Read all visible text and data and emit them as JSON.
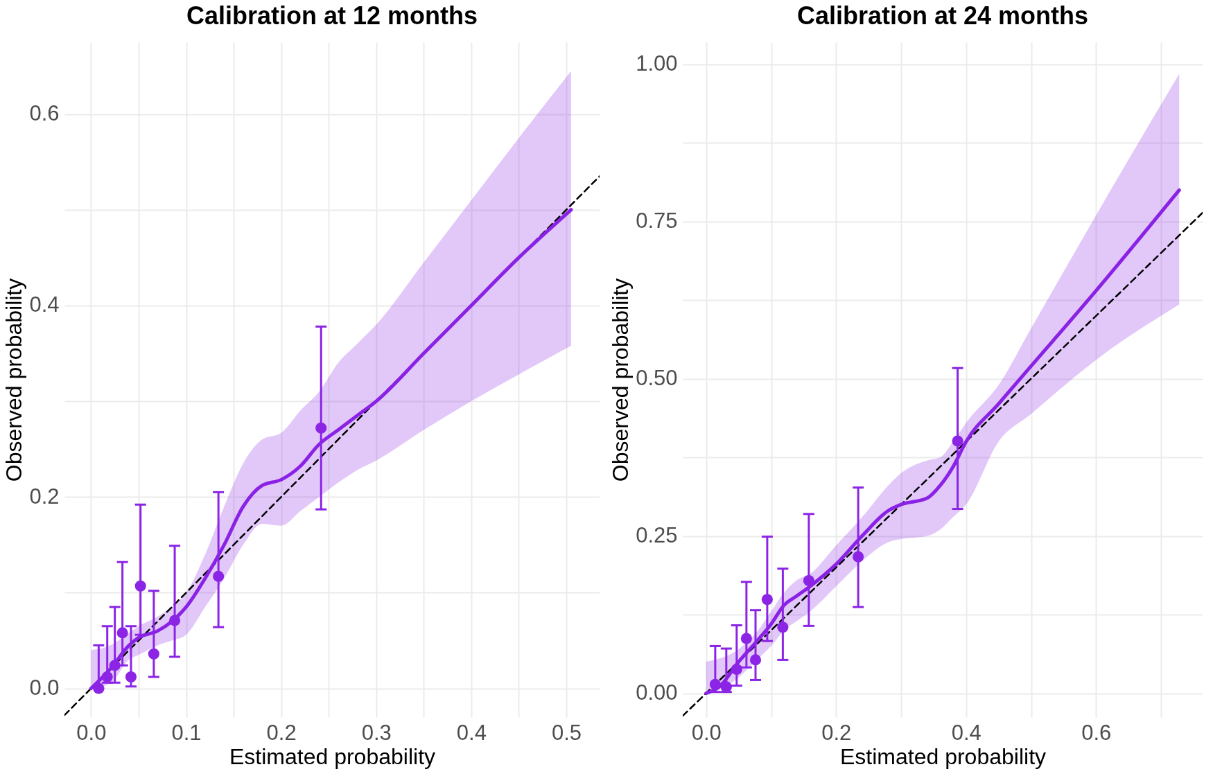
{
  "chart_data": [
    {
      "type": "scatter",
      "title": "Calibration at 12 months",
      "xlabel": "Estimated probability",
      "ylabel": "Observed probability",
      "xlim": [
        -0.028,
        0.535
      ],
      "ylim": [
        -0.03,
        0.675
      ],
      "xticks": [
        {
          "value": 0,
          "label": "0.0"
        },
        {
          "value": 0.05,
          "label": null
        },
        0.1,
        {
          "value": 0.15,
          "label": null
        },
        0.2,
        {
          "value": 0.25,
          "label": null
        },
        0.3,
        {
          "value": 0.35,
          "label": null
        },
        0.4,
        {
          "value": 0.45,
          "label": null
        },
        0.5
      ],
      "yticks": [
        {
          "value": 0,
          "label": "0.0"
        },
        {
          "value": 0.1,
          "label": null
        },
        0.2,
        {
          "value": 0.3,
          "label": null
        },
        0.4,
        {
          "value": 0.5,
          "label": null
        },
        0.6
      ],
      "grid": true,
      "series": [
        {
          "type": "line",
          "color": "#000000",
          "line_style": "dashed",
          "x": [
            -0.028,
            0.535
          ],
          "values": [
            -0.028,
            0.535
          ]
        },
        {
          "type": "line",
          "color": "#8a22e6",
          "x": [
            0,
            0.02,
            0.04,
            0.05,
            0.07,
            0.085,
            0.1,
            0.12,
            0.14,
            0.16,
            0.18,
            0.2,
            0.22,
            0.24,
            0.26,
            0.28,
            0.3,
            0.35,
            0.4,
            0.45,
            0.505
          ],
          "values": [
            0,
            0.02,
            0.045,
            0.053,
            0.06,
            0.07,
            0.085,
            0.115,
            0.15,
            0.19,
            0.212,
            0.218,
            0.232,
            0.255,
            0.27,
            0.285,
            0.3,
            0.35,
            0.4,
            0.45,
            0.5
          ],
          "lower": [
            0,
            0.005,
            0.03,
            0.035,
            0.045,
            0.05,
            0.056,
            0.085,
            0.115,
            0.15,
            0.172,
            0.17,
            0.185,
            0.2,
            0.215,
            0.228,
            0.238,
            0.27,
            0.3,
            0.328,
            0.358
          ],
          "upper": [
            0.04,
            0.045,
            0.058,
            0.065,
            0.075,
            0.085,
            0.1,
            0.14,
            0.19,
            0.235,
            0.26,
            0.267,
            0.29,
            0.31,
            0.34,
            0.36,
            0.38,
            0.445,
            0.51,
            0.575,
            0.645
          ]
        },
        {
          "type": "scatter",
          "color": "#8b24e4",
          "marker": "circle",
          "x": [
            0.008,
            0.017,
            0.025,
            0.033,
            0.042,
            0.052,
            0.066,
            0.088,
            0.134,
            0.242
          ],
          "values": [
            0,
            0.012,
            0.024,
            0.058,
            0.012,
            0.107,
            0.036,
            0.071,
            0.117,
            0.272
          ],
          "errors": [
            [
              0,
              0.045
            ],
            [
              0.006,
              0.065
            ],
            [
              0.006,
              0.085
            ],
            [
              0.024,
              0.132
            ],
            [
              0.002,
              0.065
            ],
            [
              0.056,
              0.192
            ],
            [
              0.012,
              0.102
            ],
            [
              0.033,
              0.149
            ],
            [
              0.064,
              0.205
            ],
            [
              0.187,
              0.378
            ]
          ]
        }
      ]
    },
    {
      "type": "scatter",
      "title": "Calibration at 24 months",
      "xlabel": "Estimated probability",
      "ylabel": "Observed probability",
      "xlim": [
        -0.036,
        0.764
      ],
      "ylim": [
        -0.038,
        1.035
      ],
      "xticks": [
        {
          "value": 0,
          "label": "0.0"
        },
        {
          "value": 0.1,
          "label": null
        },
        0.2,
        {
          "value": 0.3,
          "label": null
        },
        0.4,
        {
          "value": 0.5,
          "label": null
        },
        0.6,
        {
          "value": 0.7,
          "label": null
        }
      ],
      "yticks": [
        {
          "value": 0,
          "label": "0.00"
        },
        {
          "value": 0.125,
          "label": null
        },
        0.25,
        {
          "value": 0.375,
          "label": null
        },
        {
          "value": 0.5,
          "label": "0.50"
        },
        {
          "value": 0.625,
          "label": null
        },
        0.75,
        {
          "value": 0.875,
          "label": null
        },
        {
          "value": 1,
          "label": "1.00"
        }
      ],
      "grid": true,
      "series": [
        {
          "type": "line",
          "color": "#000000",
          "line_style": "dashed",
          "x": [
            -0.036,
            0.764
          ],
          "values": [
            -0.036,
            0.764
          ]
        },
        {
          "type": "line",
          "color": "#8a22e6",
          "x": [
            0,
            0.02,
            0.05,
            0.08,
            0.1,
            0.12,
            0.14,
            0.16,
            0.2,
            0.24,
            0.28,
            0.3,
            0.34,
            0.36,
            0.38,
            0.4,
            0.45,
            0.5,
            0.6,
            0.728
          ],
          "values": [
            0,
            0.01,
            0.05,
            0.085,
            0.11,
            0.14,
            0.155,
            0.17,
            0.205,
            0.25,
            0.29,
            0.3,
            0.31,
            0.33,
            0.36,
            0.4,
            0.46,
            0.52,
            0.64,
            0.8
          ],
          "lower": [
            0,
            0.005,
            0.025,
            0.055,
            0.075,
            0.1,
            0.115,
            0.13,
            0.17,
            0.21,
            0.24,
            0.245,
            0.25,
            0.26,
            0.28,
            0.3,
            0.4,
            0.444,
            0.53,
            0.618
          ],
          "upper": [
            0.05,
            0.055,
            0.07,
            0.1,
            0.13,
            0.16,
            0.18,
            0.19,
            0.235,
            0.28,
            0.33,
            0.35,
            0.37,
            0.375,
            0.4,
            0.43,
            0.49,
            0.58,
            0.76,
            0.985
          ]
        },
        {
          "type": "scatter",
          "color": "#8b24e4",
          "marker": "circle",
          "x": [
            0.014,
            0.031,
            0.047,
            0.062,
            0.076,
            0.094,
            0.118,
            0.158,
            0.234,
            0.387
          ],
          "values": [
            0.014,
            0.01,
            0.038,
            0.087,
            0.053,
            0.149,
            0.105,
            0.179,
            0.217,
            0.401
          ],
          "errors": [
            [
              0.002,
              0.075
            ],
            [
              0.002,
              0.071
            ],
            [
              0.012,
              0.108
            ],
            [
              0.041,
              0.177
            ],
            [
              0.021,
              0.132
            ],
            [
              0.083,
              0.249
            ],
            [
              0.053,
              0.198
            ],
            [
              0.107,
              0.285
            ],
            [
              0.137,
              0.327
            ],
            [
              0.293,
              0.517
            ]
          ]
        }
      ]
    }
  ]
}
